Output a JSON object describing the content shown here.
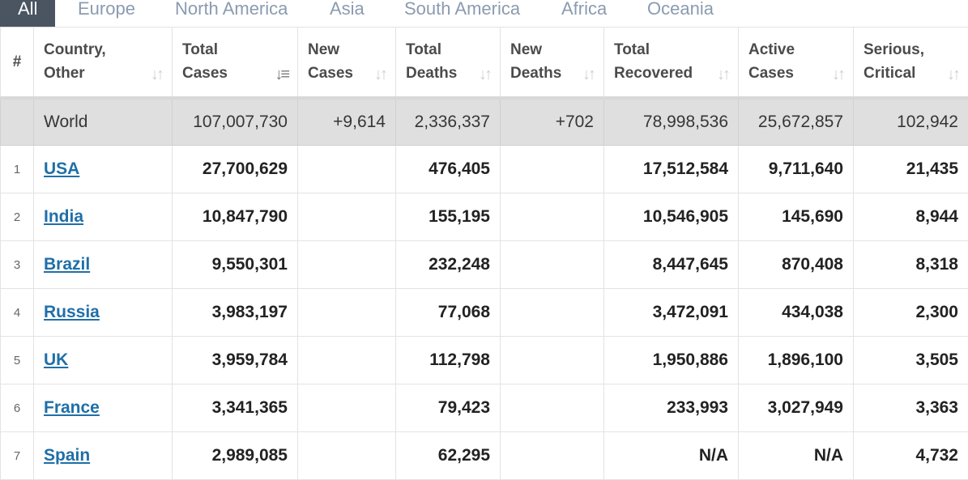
{
  "tabs": [
    "All",
    "Europe",
    "North America",
    "Asia",
    "South America",
    "Africa",
    "Oceania"
  ],
  "headers": {
    "rank": "#",
    "country": [
      "Country,",
      "Other"
    ],
    "total_cases": [
      "Total",
      "Cases"
    ],
    "new_cases": [
      "New",
      "Cases"
    ],
    "total_deaths": [
      "Total",
      "Deaths"
    ],
    "new_deaths": [
      "New",
      "Deaths"
    ],
    "total_recovered": [
      "Total",
      "Recovered"
    ],
    "active_cases": [
      "Active",
      "Cases"
    ],
    "serious_critical": [
      "Serious,",
      "Critical"
    ]
  },
  "world": {
    "country": "World",
    "total_cases": "107,007,730",
    "new_cases": "+9,614",
    "total_deaths": "2,336,337",
    "new_deaths": "+702",
    "total_recovered": "78,998,536",
    "active_cases": "25,672,857",
    "serious_critical": "102,942"
  },
  "rows": [
    {
      "rank": "1",
      "country": "USA",
      "total_cases": "27,700,629",
      "new_cases": "",
      "total_deaths": "476,405",
      "new_deaths": "",
      "total_recovered": "17,512,584",
      "active_cases": "9,711,640",
      "serious_critical": "21,435"
    },
    {
      "rank": "2",
      "country": "India",
      "total_cases": "10,847,790",
      "new_cases": "",
      "total_deaths": "155,195",
      "new_deaths": "",
      "total_recovered": "10,546,905",
      "active_cases": "145,690",
      "serious_critical": "8,944"
    },
    {
      "rank": "3",
      "country": "Brazil",
      "total_cases": "9,550,301",
      "new_cases": "",
      "total_deaths": "232,248",
      "new_deaths": "",
      "total_recovered": "8,447,645",
      "active_cases": "870,408",
      "serious_critical": "8,318"
    },
    {
      "rank": "4",
      "country": "Russia",
      "total_cases": "3,983,197",
      "new_cases": "",
      "total_deaths": "77,068",
      "new_deaths": "",
      "total_recovered": "3,472,091",
      "active_cases": "434,038",
      "serious_critical": "2,300"
    },
    {
      "rank": "5",
      "country": "UK",
      "total_cases": "3,959,784",
      "new_cases": "",
      "total_deaths": "112,798",
      "new_deaths": "",
      "total_recovered": "1,950,886",
      "active_cases": "1,896,100",
      "serious_critical": "3,505"
    },
    {
      "rank": "6",
      "country": "France",
      "total_cases": "3,341,365",
      "new_cases": "",
      "total_deaths": "79,423",
      "new_deaths": "",
      "total_recovered": "233,993",
      "active_cases": "3,027,949",
      "serious_critical": "3,363"
    },
    {
      "rank": "7",
      "country": "Spain",
      "total_cases": "2,989,085",
      "new_cases": "",
      "total_deaths": "62,295",
      "new_deaths": "",
      "total_recovered": "N/A",
      "active_cases": "N/A",
      "serious_critical": "4,732"
    }
  ],
  "icons": {
    "sort": "sort-arrows-icon",
    "sort_active": "sort-descending-icon"
  },
  "colors": {
    "tab_active_bg": "#4a5561",
    "tab_text": "#8b9bb0",
    "link": "#1f6fa8",
    "world_row_bg": "#dfdfdf"
  }
}
